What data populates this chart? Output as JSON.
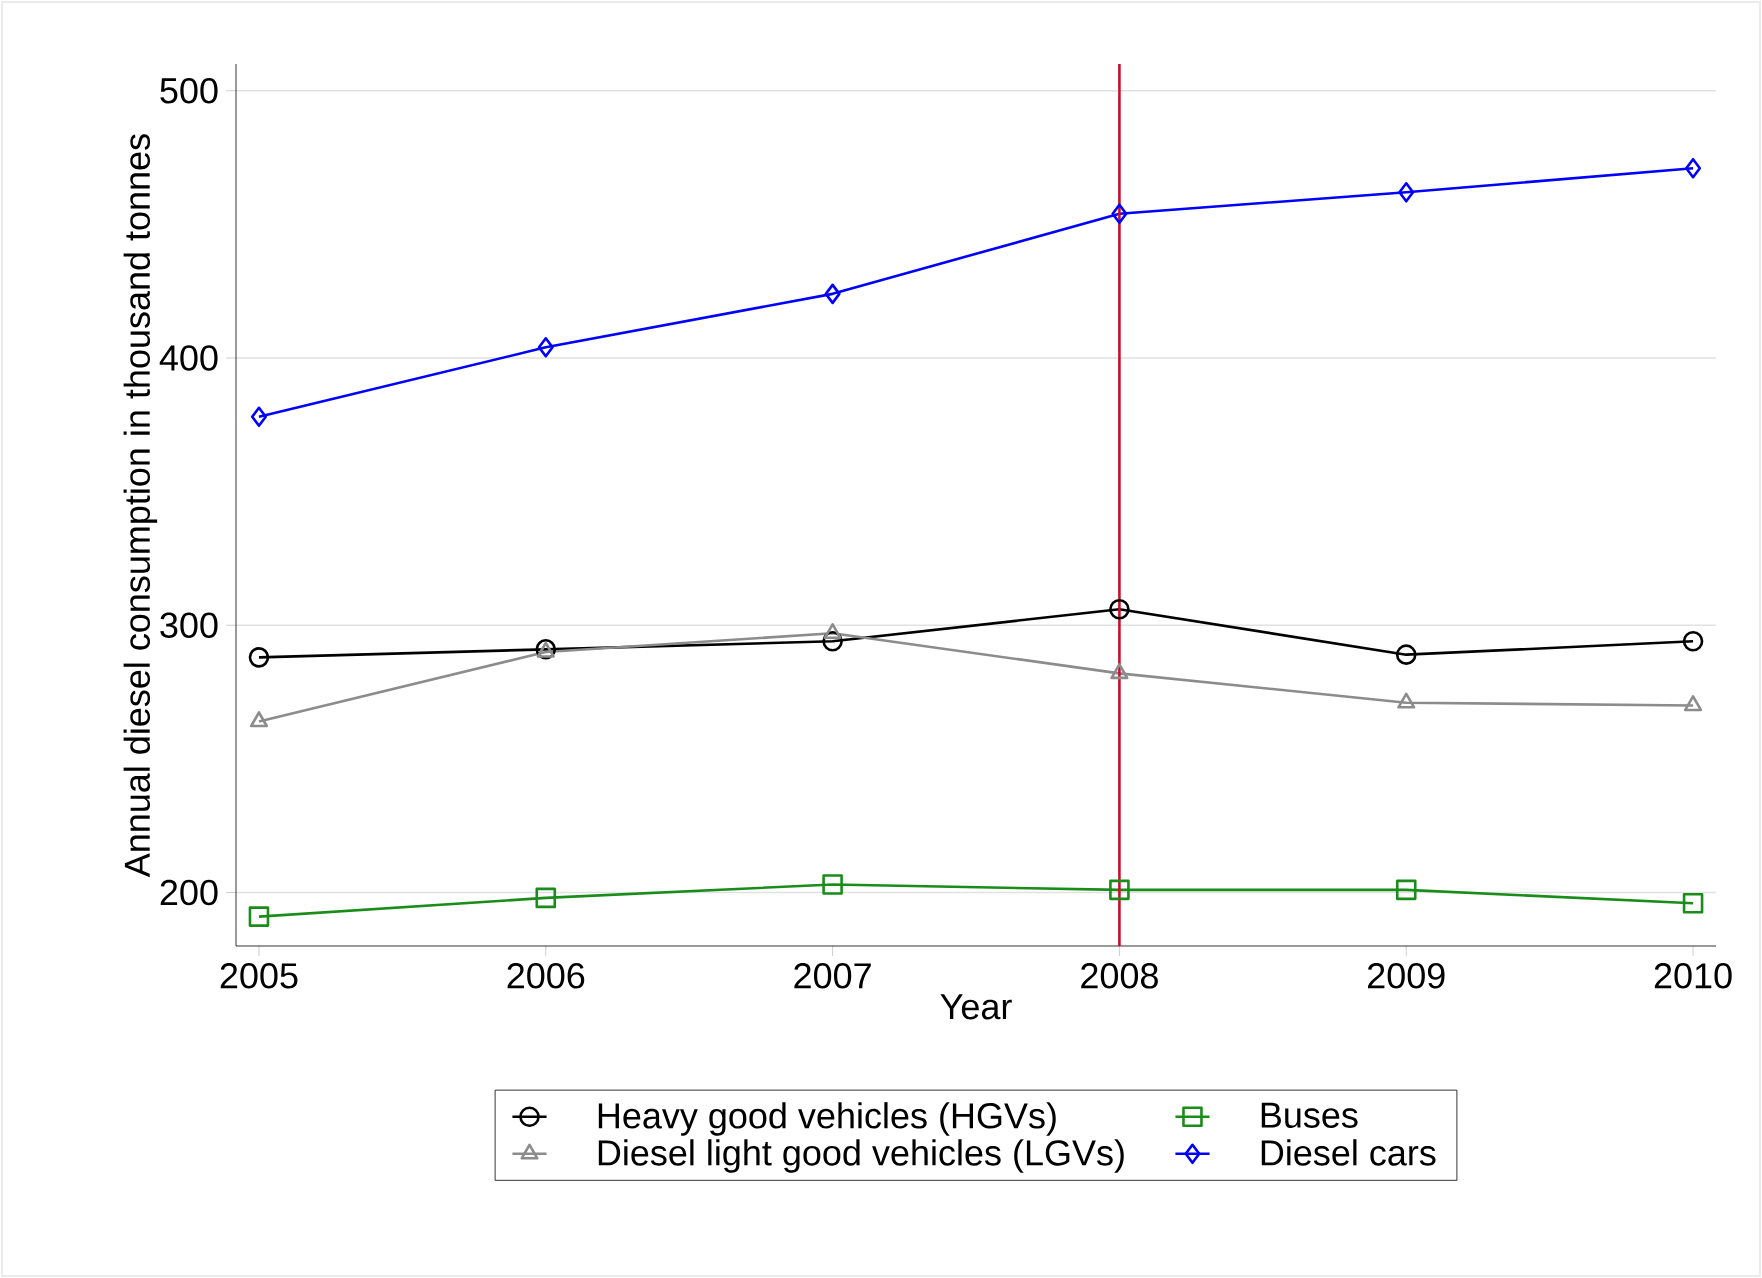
{
  "chart_data": {
    "type": "line",
    "xlabel": "Year",
    "ylabel": "Annual diesel consumption in thousand tonnes",
    "x": [
      2005,
      2006,
      2007,
      2008,
      2009,
      2010
    ],
    "series": [
      {
        "name": "Heavy good vehicles (HGVs)",
        "color": "#000000",
        "marker": "circle",
        "values": [
          288,
          291,
          294,
          306,
          289,
          294
        ]
      },
      {
        "name": "Buses",
        "color": "#1a8c1a",
        "marker": "square",
        "values": [
          191,
          198,
          203,
          201,
          201,
          196
        ]
      },
      {
        "name": "Diesel light good vehicles (LGVs)",
        "color": "#8c8c8c",
        "marker": "triangle",
        "values": [
          264,
          290,
          297,
          282,
          271,
          270
        ]
      },
      {
        "name": "Diesel cars",
        "color": "#0000ff",
        "marker": "diamond",
        "values": [
          378,
          404,
          424,
          454,
          462,
          471
        ]
      }
    ],
    "xlim": [
      2004.92,
      2010.08
    ],
    "ylim": [
      180,
      510
    ],
    "xticks": [
      2005,
      2006,
      2007,
      2008,
      2009,
      2010
    ],
    "yticks": [
      200,
      300,
      400,
      500
    ],
    "ref_lines": [
      {
        "axis": "x",
        "value": 2008,
        "color": "#c8102e"
      }
    ],
    "grid": "y",
    "legend": "bottom",
    "line_style": "solid"
  }
}
